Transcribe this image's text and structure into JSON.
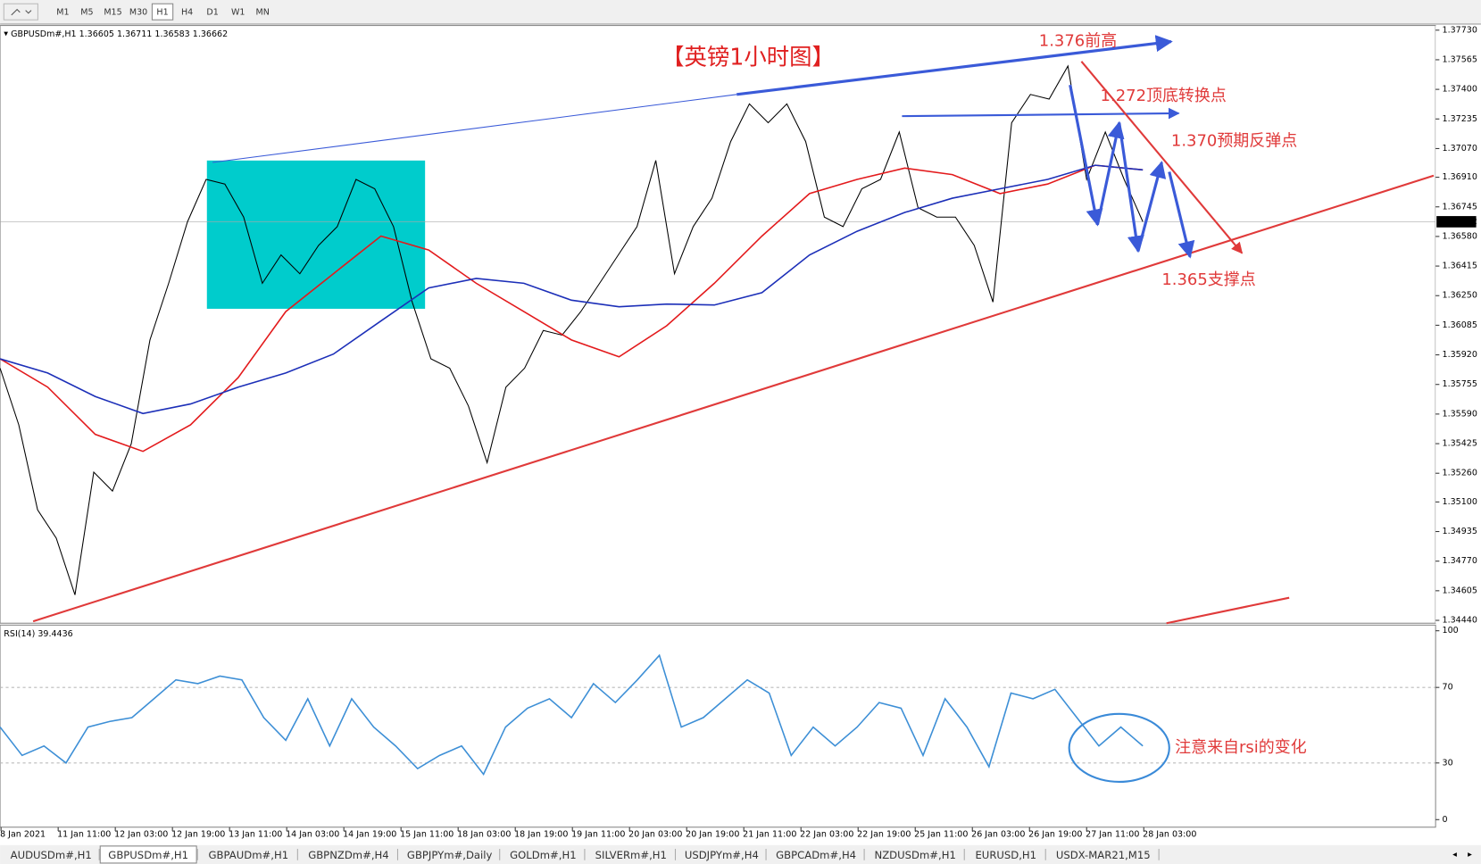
{
  "toolbar": {
    "timeframes": [
      "M1",
      "M5",
      "M15",
      "M30",
      "H1",
      "H4",
      "D1",
      "W1",
      "MN"
    ],
    "active": "H1"
  },
  "symbol_info": {
    "symbol": "GBPUSDm#,H1",
    "open": 1.36605,
    "high": 1.36711,
    "low": 1.36583,
    "close": 1.36662
  },
  "chart_data": [
    {
      "type": "line",
      "title": "【英镑1小时图】",
      "ylim": [
        1.34424,
        1.37756
      ],
      "yticks": [
        {
          "value": 1.3773,
          "label": "1.37730"
        },
        1.37565,
        {
          "value": 1.374,
          "label": "1.37400"
        },
        1.37235,
        {
          "value": 1.3707,
          "label": "1.37070"
        },
        {
          "value": 1.3691,
          "label": "1.36910"
        },
        1.36745,
        {
          "value": 1.3658,
          "label": "1.36580"
        },
        1.36415,
        {
          "value": 1.3625,
          "label": "1.36250"
        },
        1.36085,
        {
          "value": 1.3592,
          "label": "1.35920"
        },
        1.35755,
        {
          "value": 1.3559,
          "label": "1.35590"
        },
        1.35425,
        {
          "value": 1.3526,
          "label": "1.35260"
        },
        {
          "value": 1.351,
          "label": "1.35100"
        },
        1.34935,
        {
          "value": 1.3477,
          "label": "1.34770"
        },
        1.34605,
        {
          "value": 1.3444,
          "label": "1.34440"
        }
      ],
      "series": [
        {
          "name": "GBPUSDm#",
          "color": "#000000",
          "values": [
            1.35846,
            1.3553,
            1.35056,
            1.34898,
            1.34582,
            1.35266,
            1.35161,
            1.35424,
            1.36003,
            1.36319,
            1.36661,
            1.36898,
            1.36872,
            1.36688,
            1.36319,
            1.36477,
            1.36372,
            1.3653,
            1.36635,
            1.36898,
            1.36846,
            1.36635,
            1.36214,
            1.35898,
            1.35846,
            1.35635,
            1.35319,
            1.3574,
            1.35846,
            1.36056,
            1.3603,
            1.36161,
            1.36319,
            1.36477,
            1.36635,
            1.37004,
            1.36372,
            1.36635,
            1.36793,
            1.37109,
            1.37319,
            1.37214,
            1.37319,
            1.37109,
            1.36688,
            1.36635,
            1.36846,
            1.36898,
            1.37162,
            1.3674,
            1.36688,
            1.36688,
            1.3653,
            1.36214,
            1.37214,
            1.37372,
            1.37346,
            1.3753,
            1.36898,
            1.37162,
            1.36898,
            1.36662
          ]
        },
        {
          "name": "MA red",
          "color": "#e31a1c",
          "values": [
            1.35898,
            1.3574,
            1.35477,
            1.35382,
            1.3553,
            1.35793,
            1.36161,
            1.36372,
            1.36582,
            1.36504,
            1.36319,
            1.36161,
            1.36003,
            1.35909,
            1.36082,
            1.36319,
            1.36582,
            1.36819,
            1.36898,
            1.36961,
            1.36925,
            1.36819,
            1.36872,
            1.36977,
            1.36951
          ]
        },
        {
          "name": "MA blue",
          "color": "#1c2fb8",
          "values": [
            1.35898,
            1.35819,
            1.35688,
            1.35593,
            1.35646,
            1.3574,
            1.35819,
            1.35924,
            1.36109,
            1.36293,
            1.36346,
            1.36319,
            1.36225,
            1.36188,
            1.36203,
            1.36198,
            1.36267,
            1.36477,
            1.36609,
            1.36714,
            1.36793,
            1.36846,
            1.36898,
            1.36977,
            1.36951
          ]
        }
      ],
      "annotations": [
        "1.376前高",
        "1.272顶底转换点",
        "1.370预期反弹点",
        "1.365支撑点"
      ]
    },
    {
      "type": "line",
      "title": "RSI(14)",
      "last_value": 39.4436,
      "ylim": [
        0,
        100
      ],
      "yticks": [
        0,
        30,
        70,
        100
      ],
      "series": [
        {
          "name": "RSI(14)",
          "color": "#3d8fd6",
          "values": [
            49,
            34,
            39,
            30,
            49,
            52,
            54,
            64,
            74,
            72,
            76,
            74,
            54,
            42,
            64,
            39,
            64,
            49,
            39,
            27,
            34,
            39,
            24,
            49,
            59,
            64,
            54,
            72,
            62,
            74,
            87,
            49,
            54,
            64,
            74,
            67,
            34,
            49,
            39,
            49,
            62,
            59,
            34,
            64,
            49,
            28,
            67,
            64,
            69,
            54,
            39,
            49,
            39
          ]
        }
      ],
      "annotations": [
        "注意来自rsi的变化"
      ],
      "x_tick_labels": [
        "8 Jan 2021",
        "11 Jan 11:00",
        "12 Jan 03:00",
        "12 Jan 19:00",
        "13 Jan 11:00",
        "14 Jan 03:00",
        "14 Jan 19:00",
        "15 Jan 11:00",
        "18 Jan 03:00",
        "18 Jan 19:00",
        "19 Jan 11:00",
        "20 Jan 03:00",
        "20 Jan 19:00",
        "21 Jan 11:00",
        "22 Jan 03:00",
        "22 Jan 19:00",
        "25 Jan 11:00",
        "26 Jan 03:00",
        "26 Jan 19:00",
        "27 Jan 11:00",
        "28 Jan 03:00"
      ]
    }
  ],
  "tabs": [
    "AUDUSDm#,H1",
    "GBPUSDm#,H1",
    "GBPAUDm#,H1",
    "GBPNZDm#,H4",
    "GBPJPYm#,Daily",
    "GOLDm#,H1",
    "SILVERm#,H1",
    "USDJPYm#,H4",
    "GBPCADm#,H4",
    "NZDUSDm#,H1",
    "EURUSD,H1",
    "USDX-MAR21,M15"
  ],
  "active_tab": "GBPUSDm#,H1"
}
